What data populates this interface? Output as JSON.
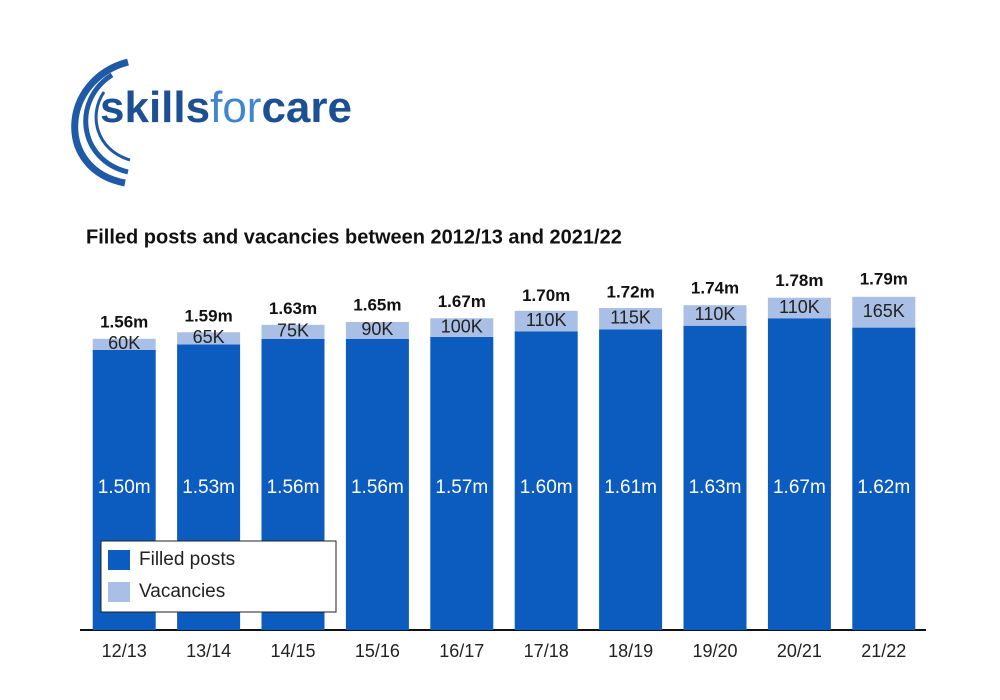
{
  "logo": {
    "parts": [
      "skills",
      "for",
      "care"
    ]
  },
  "chart_data": {
    "type": "stacked-bar",
    "title": "Filled posts and vacancies between 2012/13 and 2021/22",
    "categories": [
      "12/13",
      "13/14",
      "14/15",
      "15/16",
      "16/17",
      "17/18",
      "18/19",
      "19/20",
      "20/21",
      "21/22"
    ],
    "series": [
      {
        "name": "Filled posts",
        "color": "#0b5cbe",
        "values": [
          1.5,
          1.53,
          1.56,
          1.56,
          1.57,
          1.6,
          1.61,
          1.63,
          1.67,
          1.62
        ],
        "value_labels": [
          "1.50m",
          "1.53m",
          "1.56m",
          "1.56m",
          "1.57m",
          "1.60m",
          "1.61m",
          "1.63m",
          "1.67m",
          "1.62m"
        ]
      },
      {
        "name": "Vacancies",
        "color": "#a9bfe6",
        "values": [
          0.06,
          0.065,
          0.075,
          0.09,
          0.1,
          0.11,
          0.115,
          0.11,
          0.11,
          0.165
        ],
        "value_labels": [
          "60K",
          "65K",
          "75K",
          "90K",
          "100K",
          "110K",
          "115K",
          "110K",
          "110K",
          "165K"
        ]
      }
    ],
    "totals": [
      1.56,
      1.59,
      1.63,
      1.65,
      1.67,
      1.7,
      1.72,
      1.74,
      1.78,
      1.79
    ],
    "total_labels": [
      "1.56m",
      "1.59m",
      "1.63m",
      "1.65m",
      "1.67m",
      "1.70m",
      "1.72m",
      "1.74m",
      "1.78m",
      "1.79m"
    ],
    "ylim": [
      0,
      1.8
    ]
  }
}
